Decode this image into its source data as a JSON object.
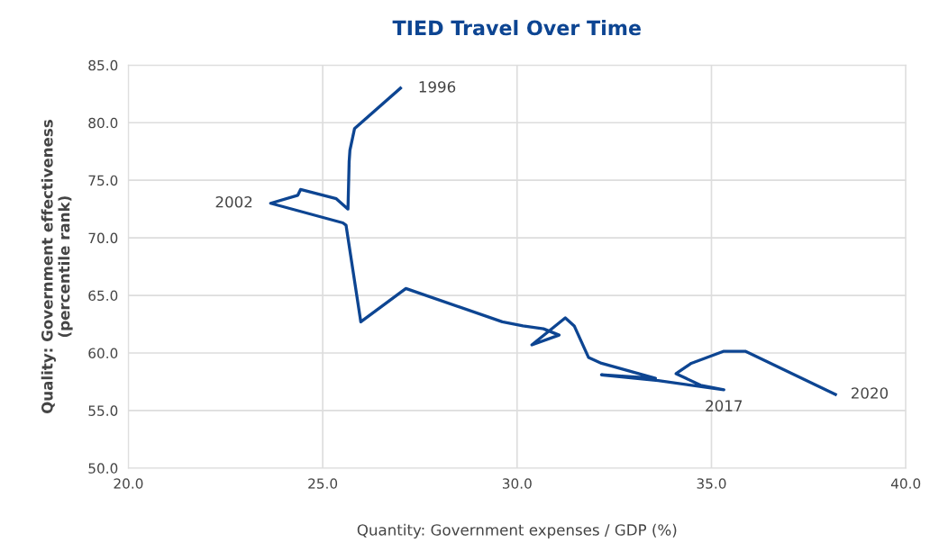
{
  "chart_data": {
    "type": "line",
    "title": "TIED Travel Over Time",
    "xlabel": "Quantity: Government expenses / GDP (%)",
    "ylabel": "Quality: Government effectiveness\n(percentile rank)",
    "series": [
      {
        "color": "#0d4592",
        "x": [
          27.0,
          25.82,
          25.7,
          25.68,
          25.65,
          25.35,
          24.43,
          24.36,
          23.66,
          25.52,
          25.6,
          25.98,
          27.14,
          29.62,
          30.15,
          30.68,
          31.08,
          30.38,
          31.24,
          31.47,
          31.84,
          32.17,
          33.56,
          32.17,
          33.63,
          35.32,
          34.72,
          34.09,
          34.48,
          35.32,
          35.87,
          38.19
        ],
        "values": [
          83.0,
          79.5,
          77.6,
          76.6,
          72.5,
          73.4,
          74.2,
          73.7,
          73.0,
          71.3,
          71.1,
          62.7,
          65.6,
          62.7,
          62.35,
          62.1,
          61.55,
          60.7,
          63.05,
          62.35,
          59.6,
          59.1,
          57.8,
          58.1,
          57.6,
          56.8,
          57.2,
          58.2,
          59.1,
          60.15,
          60.15,
          56.4
        ]
      }
    ],
    "annotations": [
      {
        "text": "1996",
        "x": 27.0,
        "y": 83.0
      },
      {
        "text": "2002",
        "x": 23.66,
        "y": 73.0
      },
      {
        "text": "2017",
        "x": 35.32,
        "y": 56.8
      },
      {
        "text": "2020",
        "x": 38.19,
        "y": 56.4
      }
    ],
    "xlim": [
      20,
      40
    ],
    "ylim": [
      50,
      85
    ],
    "xticks": [
      {
        "value": 20,
        "label": "20.0"
      },
      {
        "value": 25,
        "label": "25.0"
      },
      {
        "value": 30,
        "label": "30.0"
      },
      {
        "value": 35,
        "label": "35.0"
      },
      {
        "value": 40,
        "label": "40.0"
      }
    ],
    "yticks": [
      {
        "value": 50,
        "label": "50.0"
      },
      {
        "value": 55,
        "label": "55.0"
      },
      {
        "value": 60,
        "label": "60.0"
      },
      {
        "value": 65,
        "label": "65.0"
      },
      {
        "value": 70,
        "label": "70.0"
      },
      {
        "value": 75,
        "label": "75.0"
      },
      {
        "value": 80,
        "label": "80.0"
      },
      {
        "value": 85,
        "label": "85.0"
      }
    ],
    "grid": true,
    "legend": false,
    "marker": "none",
    "line_style": "solid"
  }
}
